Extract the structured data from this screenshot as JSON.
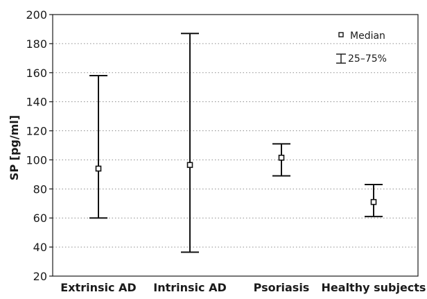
{
  "chart_data": {
    "type": "error-bar",
    "ylabel": "SP [pg/ml]",
    "xlabel": "",
    "ylim": [
      20,
      200
    ],
    "yticks": [
      20,
      40,
      60,
      80,
      100,
      120,
      140,
      160,
      180,
      200
    ],
    "grid": "horizontal dotted",
    "legend_position": "top-right",
    "legend": {
      "median_label": "Median",
      "range_label": "25–75%"
    },
    "categories": [
      "Extrinsic AD",
      "Intrinsic AD",
      "Psoriasis",
      "Healthy subjects"
    ],
    "series": [
      {
        "category": "Extrinsic AD",
        "median": 94,
        "q25": 60,
        "q75": 158
      },
      {
        "category": "Intrinsic AD",
        "median": 96.5,
        "q25": 36.5,
        "q75": 187
      },
      {
        "category": "Psoriasis",
        "median": 101.5,
        "q25": 89,
        "q75": 111
      },
      {
        "category": "Healthy subjects",
        "median": 71,
        "q25": 61,
        "q75": 83
      }
    ],
    "colors": {
      "axis": "#1a1a1a",
      "grid": "#8c8c8c",
      "bars": "#111111"
    }
  }
}
